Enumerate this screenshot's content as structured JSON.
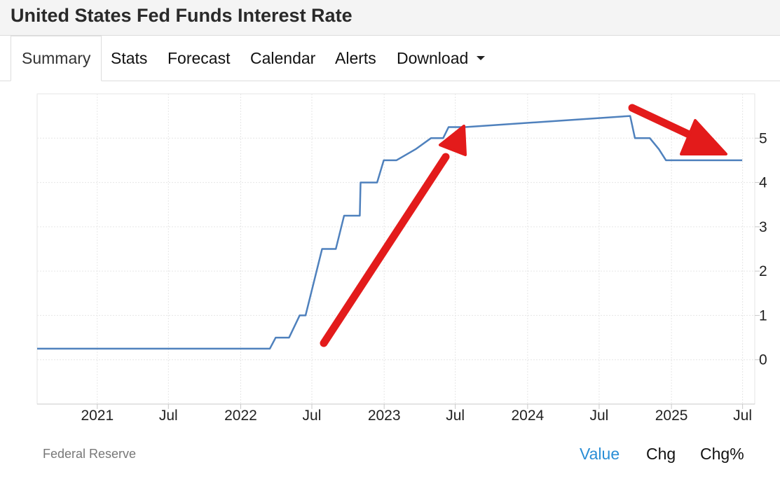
{
  "title": "United States Fed Funds Interest Rate",
  "tabs": [
    {
      "label": "Summary",
      "active": true
    },
    {
      "label": "Stats"
    },
    {
      "label": "Forecast"
    },
    {
      "label": "Calendar"
    },
    {
      "label": "Alerts"
    },
    {
      "label": "Download",
      "has_dropdown": true
    }
  ],
  "source": "Federal Reserve",
  "view_modes": [
    {
      "label": "Value",
      "active": true
    },
    {
      "label": "Chg"
    },
    {
      "label": "Chg%"
    }
  ],
  "colors": {
    "line": "#4f81bd",
    "arrow": "#e31b1b",
    "active_mode": "#2a8ed6",
    "grid": "#e6e6e6"
  },
  "annotations": [
    {
      "type": "arrow",
      "direction": "up",
      "color": "#e31b1b"
    },
    {
      "type": "arrow",
      "direction": "down-right",
      "color": "#e31b1b"
    }
  ],
  "chart_data": {
    "type": "line",
    "title": "",
    "xlabel": "",
    "ylabel": "",
    "x_ticks": [
      "2021",
      "Jul",
      "2022",
      "Jul",
      "2023",
      "Jul",
      "2024",
      "Jul",
      "2025",
      "Jul"
    ],
    "x_tick_dates": [
      "2021-01-01",
      "2021-07-01",
      "2022-01-01",
      "2022-07-01",
      "2023-01-01",
      "2023-07-01",
      "2024-01-01",
      "2024-07-01",
      "2025-01-01",
      "2025-07-01"
    ],
    "xlim": [
      "2020-08-01",
      "2025-08-01"
    ],
    "y_ticks": [
      0,
      1,
      2,
      3,
      4,
      5
    ],
    "ylim": [
      -1,
      6
    ],
    "y_axis_side": "right",
    "grid": true,
    "series": [
      {
        "x": [
          "2020-08-01",
          "2022-03-16",
          "2022-03-31",
          "2022-05-04",
          "2022-05-31",
          "2022-06-15",
          "2022-07-27",
          "2022-08-31",
          "2022-09-21",
          "2022-10-31",
          "2022-11-02",
          "2022-12-14",
          "2022-12-31",
          "2023-02-01",
          "2023-03-22",
          "2023-04-30",
          "2023-05-03",
          "2023-05-31",
          "2023-06-14",
          "2023-07-26",
          "2024-09-18",
          "2024-09-30",
          "2024-11-07",
          "2024-11-30",
          "2024-12-18",
          "2025-06-30"
        ],
        "y": [
          0.25,
          0.25,
          0.5,
          0.5,
          1.0,
          1.0,
          2.5,
          2.5,
          3.25,
          3.25,
          4.0,
          4.0,
          4.5,
          4.5,
          4.75,
          5.0,
          5.0,
          5.0,
          5.25,
          5.25,
          5.5,
          5.0,
          5.0,
          4.75,
          4.5,
          4.5
        ]
      }
    ]
  }
}
